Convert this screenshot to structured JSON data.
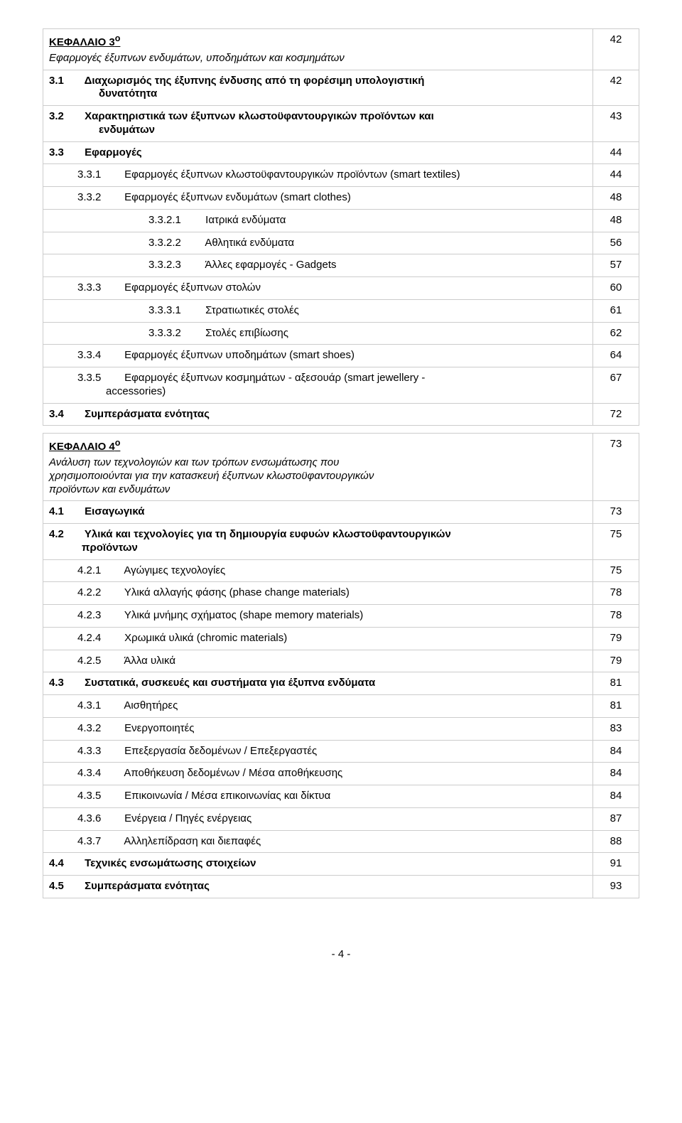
{
  "rows": [
    {
      "text_html": "<span class='chapter-title'>ΚΕΦΑΛΑΙΟ 3<sup>ο</sup></span><br><span class='italic'>Εφαρμογές έξυπνων ενδυμάτων, υποδημάτων και κοσμημάτων</span>",
      "page": "42",
      "bold": false
    },
    {
      "text_html": "<span class='bold'><span class='sec-num'>3.1</span> Διαχωρισμός της έξυπνης ένδυσης από τη φορέσιμη υπολογιστική<br><span class='indent1' style='margin-left:46px;'>δυνατότητα</span></span>",
      "page": "42"
    },
    {
      "text_html": "<span class='bold'><span class='sec-num'>3.2</span> Χαρακτηριστικά των έξυπνων κλωστοϋφαντουργικών προϊόντων και<br><span class='indent1' style='margin-left:46px;'>ενδυμάτων</span></span>",
      "page": "43"
    },
    {
      "text_html": "<span class='bold'><span class='sec-num'>3.3</span> Εφαρμογές</span>",
      "page": "44"
    },
    {
      "text_html": "<span style='display:inline-block;width:40px;'></span><span class='sec-num2'>3.3.1</span> Εφαρμογές έξυπνων κλωστοϋφαντουργικών προϊόντων (smart textiles)",
      "page": "44"
    },
    {
      "text_html": "<span style='display:inline-block;width:40px;'></span><span class='sec-num2'>3.3.2</span> Εφαρμογές έξυπνων ενδυμάτων (smart clothes)",
      "page": "48"
    },
    {
      "text_html": "<span style='display:inline-block;width:140px;'></span><span class='sec-num3'>3.3.2.1</span> Ιατρικά ενδύματα",
      "page": "48"
    },
    {
      "text_html": "<span style='display:inline-block;width:140px;'></span><span class='sec-num3'>3.3.2.2</span> Αθλητικά ενδύματα",
      "page": "56"
    },
    {
      "text_html": "<span style='display:inline-block;width:140px;'></span><span class='sec-num3'>3.3.2.3</span> Άλλες εφαρμογές - Gadgets",
      "page": "57"
    },
    {
      "text_html": "<span style='display:inline-block;width:40px;'></span><span class='sec-num2'>3.3.3</span> Εφαρμογές έξυπνων στολών",
      "page": "60"
    },
    {
      "text_html": "<span style='display:inline-block;width:140px;'></span><span class='sec-num3'>3.3.3.1</span> Στρατιωτικές στολές",
      "page": "61"
    },
    {
      "text_html": "<span style='display:inline-block;width:140px;'></span><span class='sec-num3'>3.3.3.2</span> Στολές επιβίωσης",
      "page": "62"
    },
    {
      "text_html": "<span style='display:inline-block;width:40px;'></span><span class='sec-num2'>3.3.4</span> Εφαρμογές έξυπνων υποδημάτων (smart shoes)",
      "page": "64"
    },
    {
      "text_html": "<span style='display:inline-block;width:40px;'></span><span class='sec-num2'>3.3.5</span> Εφαρμογές έξυπνων κοσμημάτων - αξεσουάρ (smart jewellery -<br><span style='display:inline-block;width:80px;'></span>accessories)",
      "page": "67"
    },
    {
      "text_html": "<span class='bold'><span class='sec-num'>3.4</span> Συμπεράσματα ενότητας</span>",
      "page": "72"
    }
  ],
  "rows2": [
    {
      "text_html": "<span class='chapter-title'>ΚΕΦΑΛΑΙΟ 4<sup>ο</sup></span><br><span class='italic'>Ανάλυση των τεχνολογιών και των τρόπων ενσωμάτωσης που<br>χρησιμοποιούνται για την κατασκευή έξυπνων κλωστοϋφαντουργικών<br>προϊόντων και ενδυμάτων</span>",
      "page": "73"
    },
    {
      "text_html": "<span class='bold'><span class='sec-num'>4.1</span> Εισαγωγικά</span>",
      "page": "73"
    },
    {
      "text_html": "<span class='bold'><span class='sec-num'>4.2</span> Υλικά και τεχνολογίες για τη δημιουργία ευφυών κλωστοϋφαντουργικών<br><span style='display:inline-block;width:46px;'></span>προϊόντων</span>",
      "page": "75"
    },
    {
      "text_html": "<span style='display:inline-block;width:40px;'></span><span class='sec-num2'>4.2.1</span> Αγώγιμες τεχνολογίες",
      "page": "75"
    },
    {
      "text_html": "<span style='display:inline-block;width:40px;'></span><span class='sec-num2'>4.2.2</span> Υλικά αλλαγής φάσης (phase change materials)",
      "page": "78"
    },
    {
      "text_html": "<span style='display:inline-block;width:40px;'></span><span class='sec-num2'>4.2.3</span> Υλικά μνήμης σχήματος (shape memory materials)",
      "page": "78"
    },
    {
      "text_html": "<span style='display:inline-block;width:40px;'></span><span class='sec-num2'>4.2.4</span> Χρωμικά υλικά (chromic materials)",
      "page": "79"
    },
    {
      "text_html": "<span style='display:inline-block;width:40px;'></span><span class='sec-num2'>4.2.5</span> Άλλα υλικά",
      "page": "79"
    },
    {
      "text_html": "<span class='bold'><span class='sec-num'>4.3</span> Συστατικά, συσκευές και συστήματα για έξυπνα ενδύματα</span>",
      "page": "81"
    },
    {
      "text_html": "<span style='display:inline-block;width:40px;'></span><span class='sec-num2'>4.3.1</span> Αισθητήρες",
      "page": "81"
    },
    {
      "text_html": "<span style='display:inline-block;width:40px;'></span><span class='sec-num2'>4.3.2</span> Ενεργοποιητές",
      "page": "83"
    },
    {
      "text_html": "<span style='display:inline-block;width:40px;'></span><span class='sec-num2'>4.3.3</span> Επεξεργασία δεδομένων / Επεξεργαστές",
      "page": "84"
    },
    {
      "text_html": "<span style='display:inline-block;width:40px;'></span><span class='sec-num2'>4.3.4</span> Αποθήκευση δεδομένων / Μέσα αποθήκευσης",
      "page": "84"
    },
    {
      "text_html": "<span style='display:inline-block;width:40px;'></span><span class='sec-num2'>4.3.5</span> Επικοινωνία / Μέσα επικοινωνίας και δίκτυα",
      "page": "84"
    },
    {
      "text_html": "<span style='display:inline-block;width:40px;'></span><span class='sec-num2'>4.3.6</span> Ενέργεια / Πηγές ενέργειας",
      "page": "87"
    },
    {
      "text_html": "<span style='display:inline-block;width:40px;'></span><span class='sec-num2'>4.3.7</span> Αλληλεπίδραση και διεπαφές",
      "page": "88"
    },
    {
      "text_html": "<span class='bold'><span class='sec-num'>4.4</span> Τεχνικές ενσωμάτωσης στοιχείων</span>",
      "page": "91"
    },
    {
      "text_html": "<span class='bold'><span class='sec-num'>4.5</span> Συμπεράσματα ενότητας</span>",
      "page": "93"
    }
  ],
  "footer": "- 4 -"
}
